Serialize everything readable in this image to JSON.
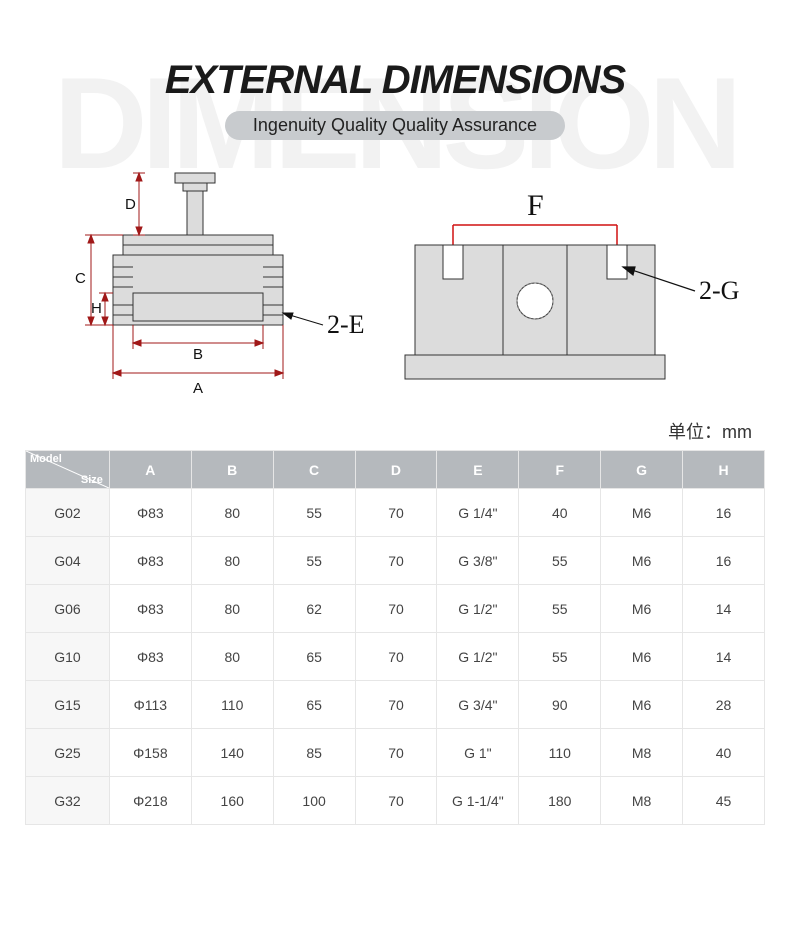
{
  "watermark": "DIMENSION",
  "title": "EXTERNAL DIMENSIONS",
  "subtitle": "Ingenuity Quality Quality Assurance",
  "unit_label": "单位：mm",
  "diagram": {
    "left": {
      "labels": {
        "A": "A",
        "B": "B",
        "C": "C",
        "D": "D",
        "H": "H"
      },
      "callout": "2-E",
      "dim_line_color": "#a01818",
      "part_fill": "#dcdcdc",
      "part_stroke": "#333333"
    },
    "right": {
      "labels": {
        "F": "F"
      },
      "callout": "2-G",
      "dim_line_color": "#d01010",
      "part_fill": "#dcdcdc",
      "part_stroke": "#333333"
    }
  },
  "table": {
    "header_bg": "#b5b9bd",
    "corner": {
      "top": "Model",
      "bottom": "Size"
    },
    "columns": [
      "A",
      "B",
      "C",
      "D",
      "E",
      "F",
      "G",
      "H"
    ],
    "rows": [
      {
        "model": "G02",
        "cells": [
          "Φ83",
          "80",
          "55",
          "70",
          "G 1/4\"",
          "40",
          "M6",
          "16"
        ]
      },
      {
        "model": "G04",
        "cells": [
          "Φ83",
          "80",
          "55",
          "70",
          "G 3/8\"",
          "55",
          "M6",
          "16"
        ]
      },
      {
        "model": "G06",
        "cells": [
          "Φ83",
          "80",
          "62",
          "70",
          "G 1/2\"",
          "55",
          "M6",
          "14"
        ]
      },
      {
        "model": "G10",
        "cells": [
          "Φ83",
          "80",
          "65",
          "70",
          "G 1/2\"",
          "55",
          "M6",
          "14"
        ]
      },
      {
        "model": "G15",
        "cells": [
          "Φ113",
          "110",
          "65",
          "70",
          "G 3/4\"",
          "90",
          "M6",
          "28"
        ]
      },
      {
        "model": "G25",
        "cells": [
          "Φ158",
          "140",
          "85",
          "70",
          "G 1\"",
          "110",
          "M8",
          "40"
        ]
      },
      {
        "model": "G32",
        "cells": [
          "Φ218",
          "160",
          "100",
          "70",
          "G 1-1/4\"",
          "180",
          "M8",
          "45"
        ]
      }
    ]
  }
}
